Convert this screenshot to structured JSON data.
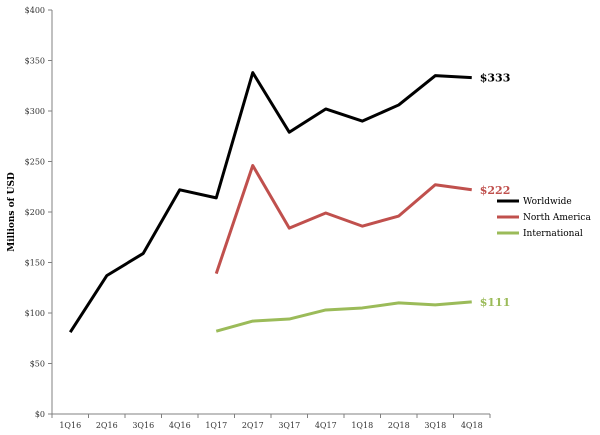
{
  "chart_data": {
    "type": "line",
    "title": "",
    "xlabel": "",
    "ylabel": "Millions of USD",
    "categories": [
      "1Q16",
      "2Q16",
      "3Q16",
      "4Q16",
      "1Q17",
      "2Q17",
      "3Q17",
      "4Q17",
      "1Q18",
      "2Q18",
      "3Q18",
      "4Q18"
    ],
    "ylim": [
      0,
      400
    ],
    "yticks": [
      {
        "value": 0,
        "label": "$0"
      },
      {
        "value": 50,
        "label": "$50"
      },
      {
        "value": 100,
        "label": "$100"
      },
      {
        "value": 150,
        "label": "$150"
      },
      {
        "value": 200,
        "label": "$200"
      },
      {
        "value": 250,
        "label": "$250"
      },
      {
        "value": 300,
        "label": "$300"
      },
      {
        "value": 350,
        "label": "$350"
      },
      {
        "value": 400,
        "label": "$400"
      }
    ],
    "grid": false,
    "legend_position": "right",
    "series": [
      {
        "name": "Worldwide",
        "color": "#000000",
        "values": [
          81,
          137,
          159,
          222,
          214,
          338,
          279,
          302,
          290,
          306,
          335,
          333
        ],
        "end_label": "$333"
      },
      {
        "name": "North America",
        "color": "#c0504d",
        "values": [
          null,
          null,
          null,
          null,
          139,
          246,
          184,
          199,
          186,
          196,
          227,
          222
        ],
        "end_label": "$222"
      },
      {
        "name": "International",
        "color": "#9bbb59",
        "values": [
          null,
          null,
          null,
          null,
          82,
          92,
          94,
          103,
          105,
          110,
          108,
          111
        ],
        "end_label": "$111"
      }
    ]
  }
}
